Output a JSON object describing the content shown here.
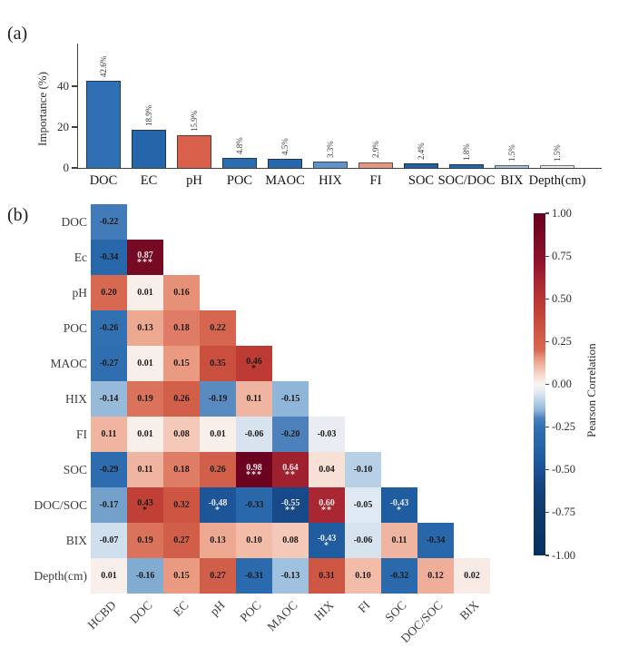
{
  "figure": {
    "panel_a_label": "(a)",
    "panel_b_label": "(b)"
  },
  "chart_data": [
    {
      "type": "bar",
      "panel": "a",
      "title": "",
      "xlabel": "",
      "ylabel": "Importance (%)",
      "ylim": [
        0,
        61
      ],
      "yticks": [
        0,
        20,
        40
      ],
      "grid": false,
      "categories": [
        "DOC",
        "EC",
        "pH",
        "POC",
        "MAOC",
        "HIX",
        "FI",
        "SOC",
        "SOC/DOC",
        "BIX",
        "Depth(cm)"
      ],
      "values": [
        42.6,
        18.9,
        15.9,
        4.8,
        4.5,
        3.3,
        2.9,
        2.4,
        1.8,
        1.5,
        1.5
      ],
      "value_labels": [
        "42.6%",
        "18.9%",
        "15.9%",
        "4.8%",
        "4.5%",
        "3.3%",
        "2.9%",
        "2.4%",
        "1.8%",
        "1.5%",
        "1.5%"
      ],
      "bar_colors": [
        "#2f6fb3",
        "#2565a9",
        "#d9604b",
        "#2b6cb0",
        "#2767ab",
        "#5e94c9",
        "#e59584",
        "#215ea2",
        "#2565a9",
        "#a3c3e1",
        "#e9ebec"
      ]
    },
    {
      "type": "heatmap",
      "panel": "b",
      "shape": "lower-triangle",
      "rows": [
        "DOC",
        "Ec",
        "pH",
        "POC",
        "MAOC",
        "HIX",
        "FI",
        "SOC",
        "DOC/SOC",
        "BIX",
        "Depth(cm)"
      ],
      "cols": [
        "HCBD",
        "DOC",
        "EC",
        "pH",
        "POC",
        "MAOC",
        "HIX",
        "FI",
        "SOC",
        "DOC/SOC",
        "BIX"
      ],
      "values": [
        [
          -0.22
        ],
        [
          -0.34,
          0.87
        ],
        [
          0.2,
          0.01,
          0.16
        ],
        [
          -0.26,
          0.13,
          0.18,
          0.22
        ],
        [
          -0.27,
          0.01,
          0.15,
          0.35,
          0.46
        ],
        [
          -0.14,
          0.19,
          0.26,
          -0.19,
          0.11,
          -0.15
        ],
        [
          0.11,
          0.01,
          0.08,
          0.01,
          -0.06,
          -0.2,
          -0.03
        ],
        [
          -0.29,
          0.11,
          0.18,
          0.26,
          0.98,
          0.64,
          0.04,
          -0.1
        ],
        [
          -0.17,
          0.43,
          0.32,
          -0.48,
          -0.33,
          -0.55,
          0.6,
          -0.05,
          -0.43
        ],
        [
          -0.07,
          0.19,
          0.27,
          0.13,
          0.1,
          0.08,
          -0.43,
          -0.06,
          0.11,
          -0.34
        ],
        [
          0.01,
          -0.16,
          0.15,
          0.27,
          -0.31,
          -0.13,
          0.31,
          0.1,
          -0.32,
          0.12,
          0.02
        ]
      ],
      "significance": [
        [
          ""
        ],
        [
          "",
          "***"
        ],
        [
          "",
          "",
          ""
        ],
        [
          "",
          "",
          "",
          ""
        ],
        [
          "",
          "",
          "",
          "",
          "*"
        ],
        [
          "",
          "",
          "",
          "",
          "",
          ""
        ],
        [
          "",
          "",
          "",
          "",
          "",
          "",
          ""
        ],
        [
          "",
          "",
          "",
          "",
          "***",
          "**",
          "",
          ""
        ],
        [
          "",
          "*",
          "",
          "*",
          "",
          "**",
          "**",
          "",
          "*"
        ],
        [
          "",
          "",
          "",
          "",
          "",
          "",
          "*",
          "",
          "",
          ""
        ],
        [
          "",
          "",
          "",
          "",
          "",
          "",
          "",
          "",
          "",
          "",
          ""
        ]
      ],
      "colorbar": {
        "label": "Pearson Correlation",
        "vmin": -1.0,
        "vmax": 1.0,
        "tick_labels": [
          "1.00",
          "0.75",
          "0.50",
          "0.25",
          "0.00",
          "-0.25",
          "-0.50",
          "-0.75",
          "-1.00"
        ],
        "color_max": "#67001f",
        "color_mid": "#f8f4f2",
        "color_min": "#053061"
      }
    }
  ]
}
